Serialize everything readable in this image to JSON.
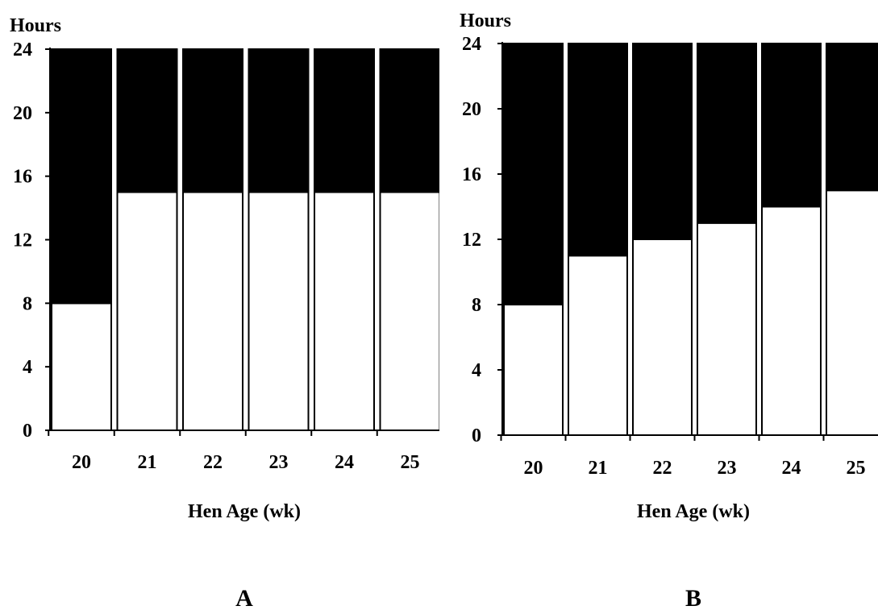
{
  "colors": {
    "dark": "#000000",
    "light": "#ffffff"
  },
  "chart_data": [
    {
      "type": "bar",
      "stacked": true,
      "panel_label": "A",
      "title": "",
      "ylabel": "Hours",
      "xlabel": "Hen Age (wk)",
      "ylim": [
        0,
        24
      ],
      "yticks": [
        0,
        4,
        8,
        12,
        16,
        20,
        24
      ],
      "categories": [
        "20",
        "21",
        "22",
        "23",
        "24",
        "25"
      ],
      "series": [
        {
          "color": "#ffffff",
          "values": [
            8,
            15,
            15,
            15,
            15,
            15
          ]
        },
        {
          "color": "#000000",
          "values": [
            16,
            9,
            9,
            9,
            9,
            9
          ]
        }
      ],
      "grid": false
    },
    {
      "type": "bar",
      "stacked": true,
      "panel_label": "B",
      "title": "",
      "ylabel": "Hours",
      "xlabel": "Hen Age (wk)",
      "ylim": [
        0,
        24
      ],
      "yticks": [
        0,
        4,
        8,
        12,
        16,
        20,
        24
      ],
      "categories": [
        "20",
        "21",
        "22",
        "23",
        "24",
        "25"
      ],
      "series": [
        {
          "color": "#ffffff",
          "values": [
            8,
            11,
            12,
            13,
            14,
            15
          ]
        },
        {
          "color": "#000000",
          "values": [
            16,
            13,
            12,
            11,
            10,
            9
          ]
        }
      ],
      "grid": false
    }
  ]
}
